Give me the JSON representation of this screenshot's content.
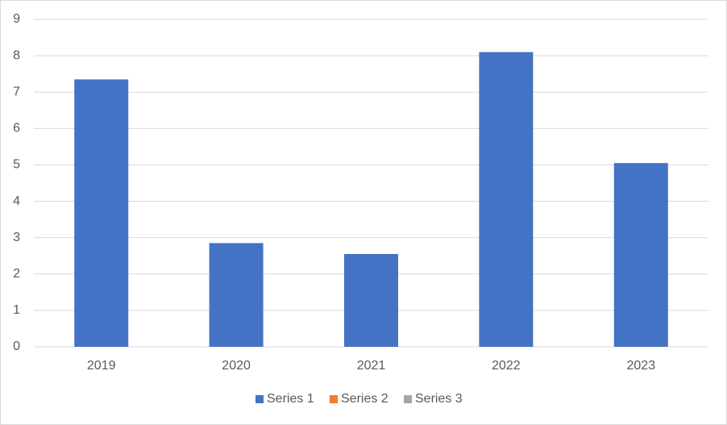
{
  "chart_data": {
    "type": "bar",
    "categories": [
      "2019",
      "2020",
      "2021",
      "2022",
      "2023"
    ],
    "series": [
      {
        "name": "Series 1",
        "color": "#4472c4",
        "values": [
          7.35,
          2.85,
          2.55,
          8.1,
          5.05
        ]
      },
      {
        "name": "Series 2",
        "color": "#ed7d31",
        "values": [
          null,
          null,
          null,
          null,
          null
        ]
      },
      {
        "name": "Series 3",
        "color": "#a5a5a5",
        "values": [
          null,
          null,
          null,
          null,
          null
        ]
      }
    ],
    "ylim": [
      0,
      9
    ],
    "yticks": [
      0,
      1,
      2,
      3,
      4,
      5,
      6,
      7,
      8,
      9
    ],
    "grid": true,
    "legend": "bottom"
  }
}
